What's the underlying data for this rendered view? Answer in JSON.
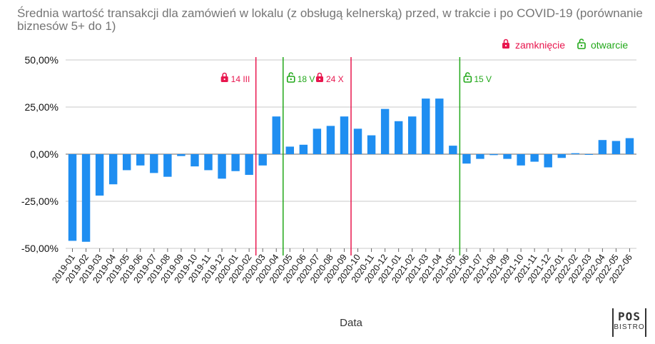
{
  "chart_data": {
    "type": "bar",
    "title": "Średnia wartość transakcji dla zamówień w lokalu (z obsługą kelnerską) przed, w trakcie i po COVID-19 (porównanie biznesów 5+ do 1)",
    "xlabel": "Data",
    "ylabel": "",
    "ylim": [
      -50,
      50
    ],
    "yticks": [
      "50,00%",
      "25,00%",
      "0,00%",
      "-25,00%",
      "-50,00%"
    ],
    "ytick_values": [
      50,
      25,
      0,
      -25,
      -50
    ],
    "grid": "horizontal",
    "bar_color": "#1f8ef1",
    "categories": [
      "2019-01",
      "2019-02",
      "2019-03",
      "2019-04",
      "2019-05",
      "2019-06",
      "2019-07",
      "2019-08",
      "2019-09",
      "2019-10",
      "2019-11",
      "2019-12",
      "2020-01",
      "2020-02",
      "2020-03",
      "2020-04",
      "2020-05",
      "2020-06",
      "2020-07",
      "2020-08",
      "2020-09",
      "2020-10",
      "2020-11",
      "2020-12",
      "2021-01",
      "2021-02",
      "2021-03",
      "2021-04",
      "2021-05",
      "2021-06",
      "2021-07",
      "2021-08",
      "2021-09",
      "2021-10",
      "2021-11",
      "2021-12",
      "2022-01",
      "2022-02",
      "2022-03",
      "2022-04",
      "2022-05",
      "2022-06"
    ],
    "values": [
      -46,
      -46.5,
      -22,
      -16,
      -8.5,
      -6,
      -10,
      -12,
      -1,
      -6.5,
      -8.5,
      -13,
      -9,
      -11,
      -6,
      20,
      4,
      5,
      13.5,
      15,
      20,
      13.5,
      10,
      24,
      17.5,
      20,
      29.5,
      29.5,
      4.5,
      -5,
      -2.5,
      -0.5,
      -2.5,
      -6,
      -4,
      -7,
      -2,
      0.5,
      0,
      7.5,
      7,
      8.5
    ],
    "legend": {
      "placement": "top-right",
      "items": [
        {
          "label": "zamknięcie",
          "color": "#e8164e",
          "icon": "lock-closed-icon"
        },
        {
          "label": "otwarcie",
          "color": "#22a81a",
          "icon": "lock-open-icon"
        }
      ]
    },
    "annotations": [
      {
        "x": "2020-03",
        "label": "14 III",
        "kind": "closed",
        "color": "#e8164e"
      },
      {
        "x": "2020-05",
        "label": "18 V",
        "kind": "open",
        "color": "#22a81a"
      },
      {
        "x": "2020-10",
        "label": "24 X",
        "kind": "closed",
        "color": "#e8164e"
      },
      {
        "x": "2021-06",
        "label": "15 V",
        "kind": "open",
        "color": "#22a81a"
      }
    ]
  },
  "logo": {
    "line1": "POS",
    "line2": "BISTRO"
  }
}
